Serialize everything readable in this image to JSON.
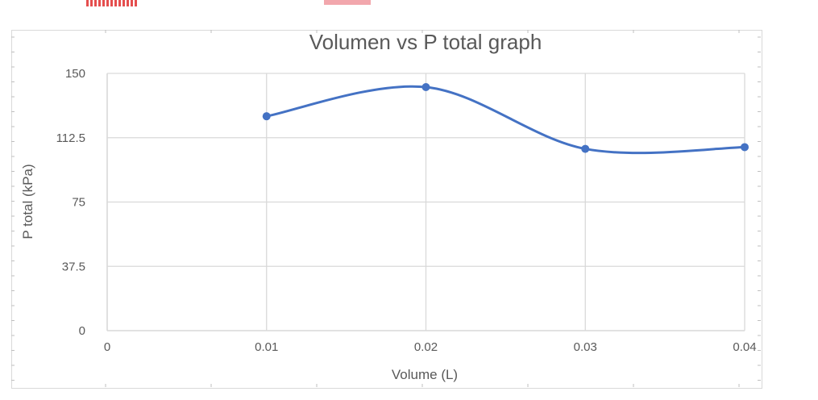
{
  "chart_data": {
    "type": "line",
    "title": "Volumen vs P total graph",
    "xlabel": "Volume (L)",
    "ylabel": "P total (kPa)",
    "x": [
      0.01,
      0.02,
      0.03,
      0.04
    ],
    "series": [
      {
        "values": [
          125,
          142,
          106,
          107
        ]
      }
    ],
    "xlim": [
      0,
      0.04
    ],
    "ylim": [
      0,
      150
    ],
    "x_ticks": [
      "0",
      "0.01",
      "0.02",
      "0.03",
      "0.04"
    ],
    "y_ticks": [
      "0",
      "37.5",
      "75",
      "112.5",
      "150"
    ],
    "smoothed": true,
    "markers": true,
    "grid": true,
    "legend": "none",
    "colors": {
      "series": "#4472C4",
      "grid": "#d9d9d9",
      "text": "#595959"
    }
  }
}
